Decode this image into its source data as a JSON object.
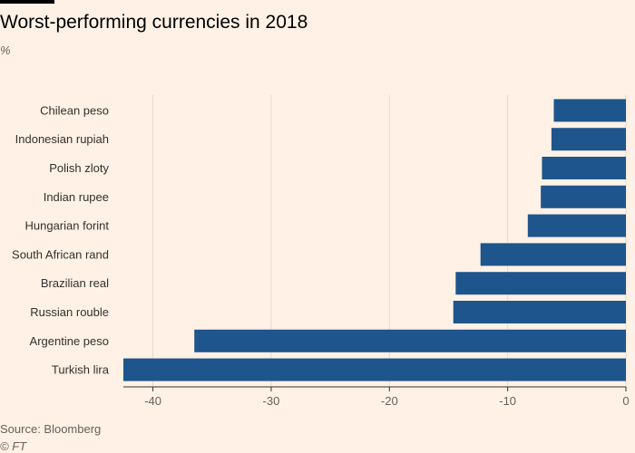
{
  "header": {
    "title": "Worst-performing currencies in 2018",
    "unit": "%"
  },
  "footer": {
    "source": "Source: Bloomberg",
    "copyright": "© FT"
  },
  "colors": {
    "bar": "#1e558c",
    "grid": "#e0dcd7",
    "axis": "#33302e"
  },
  "chart_data": {
    "type": "bar",
    "orientation": "horizontal",
    "title": "Worst-performing currencies in 2018",
    "ylabel": "%",
    "xlabel": "",
    "categories": [
      "Chilean peso",
      "Indonesian rupiah",
      "Polish zloty",
      "Indian rupee",
      "Hungarian forint",
      "South African rand",
      "Brazilian real",
      "Russian rouble",
      "Argentine peso",
      "Turkish lira"
    ],
    "values": [
      -6.1,
      -6.3,
      -7.1,
      -7.2,
      -8.3,
      -12.3,
      -14.4,
      -14.6,
      -36.5,
      -42.5
    ],
    "xlim": [
      -42.5,
      0
    ],
    "xticks": [
      -40,
      -30,
      -20,
      -10,
      0
    ],
    "grid": true
  }
}
